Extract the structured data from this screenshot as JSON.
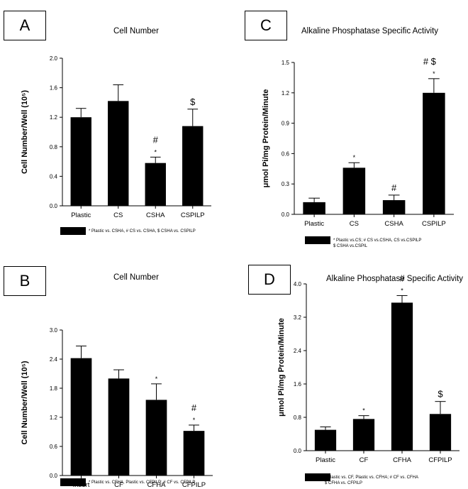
{
  "chart_data": [
    {
      "panel": "A",
      "type": "bar",
      "title": "Cell Number",
      "ylabel": "Cell Number/Well (10⁵)",
      "categories": [
        "Plastic",
        "CS",
        "CSHA",
        "CSPILP"
      ],
      "values": [
        1.2,
        1.42,
        0.58,
        1.08
      ],
      "errors": [
        0.12,
        0.22,
        0.08,
        0.23
      ],
      "ylim": [
        0,
        2.0
      ],
      "yticks": [
        "0.0",
        "0.4",
        "0.8",
        "1.2",
        "1.6",
        "2.0"
      ],
      "annotations": [
        "",
        "",
        "*",
        ""
      ],
      "symbols": [
        "",
        "",
        "#",
        "$"
      ],
      "legend": [
        "* Plastic vs. CSHA, # CS vs. CSHA, $ CSHA vs. CSPILP"
      ]
    },
    {
      "panel": "C",
      "type": "bar",
      "title": "Alkaline Phosphatase Specific Activity",
      "ylabel": "μmol Pi/mg Protein/Minute",
      "categories": [
        "Plastic",
        "CS",
        "CSHA",
        "CSPILP"
      ],
      "values": [
        0.12,
        0.46,
        0.14,
        1.2
      ],
      "errors": [
        0.04,
        0.05,
        0.05,
        0.14
      ],
      "ylim": [
        0,
        1.5
      ],
      "yticks": [
        "0.0",
        "0.3",
        "0.6",
        "0.9",
        "1.2",
        "1.5"
      ],
      "annotations": [
        "",
        "*",
        "",
        "*"
      ],
      "symbols": [
        "",
        "",
        "#",
        "# $"
      ],
      "legend": [
        "* Plastic vs.CS; # CS vs.CSHA, CS vs.CSPILP",
        "$ CSHA vs.CSPIL"
      ]
    },
    {
      "panel": "B",
      "type": "bar",
      "title": "Cell Number",
      "ylabel": "Cell Number/Well (10⁵)",
      "categories": [
        "Insert",
        "CF",
        "CFHA",
        "CFPILP"
      ],
      "values": [
        2.42,
        2.0,
        1.56,
        0.92
      ],
      "errors": [
        0.25,
        0.18,
        0.33,
        0.12
      ],
      "ylim": [
        0,
        3.0
      ],
      "yticks": [
        "0.0",
        "0.6",
        "1.2",
        "1.8",
        "2.4",
        "3.0"
      ],
      "annotations": [
        "",
        "",
        "*",
        "*"
      ],
      "symbols": [
        "",
        "",
        "",
        "#"
      ],
      "legend": [
        "* Plastic vs. CFHA, Plastic vs. CFPILP; # CF vs. CFPILP"
      ]
    },
    {
      "panel": "D",
      "type": "bar",
      "title": "Alkaline Phosphatase Specific Activity",
      "ylabel": "μmol Pi/mg Protein/Minute",
      "categories": [
        "Plastic",
        "CF",
        "CFHA",
        "CFPILP"
      ],
      "values": [
        0.5,
        0.76,
        3.55,
        0.88
      ],
      "errors": [
        0.07,
        0.08,
        0.17,
        0.3
      ],
      "ylim": [
        0,
        4.0
      ],
      "yticks": [
        "0.0",
        "0.8",
        "1.6",
        "2.4",
        "3.2",
        "4.0"
      ],
      "annotations": [
        "",
        "*",
        "*",
        ""
      ],
      "symbols": [
        "",
        "",
        "#",
        "$"
      ],
      "legend": [
        "* Plastic vs. CF, Plastic vs. CFHA; # CF vs. CFHA",
        "$ CFHA vs. CFPILP"
      ]
    }
  ]
}
